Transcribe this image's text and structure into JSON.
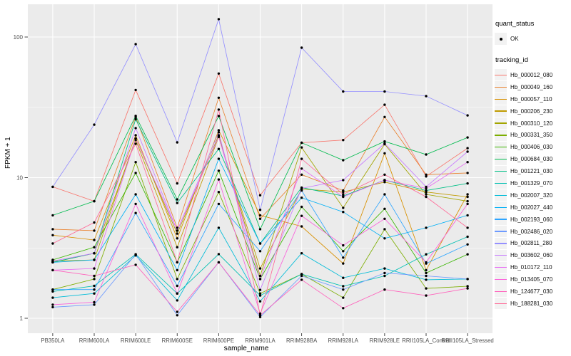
{
  "chart_data": {
    "type": "line",
    "title": "",
    "xlabel": "sample_name",
    "ylabel": "FPKM + 1",
    "yscale": "log10",
    "ylim": [
      1,
      140
    ],
    "y_ticks": [
      1,
      10,
      100
    ],
    "y_tick_labels": [
      "1",
      "10",
      "100"
    ],
    "y_minor_ticks": [
      3.1623,
      31.623
    ],
    "grid": "major-and-minor",
    "legend_position": "right",
    "categories": [
      "PB350LA",
      "RRIM600LA",
      "RRIM600LE",
      "RRIM600SE",
      "RRIM600PE",
      "RRIM901LA",
      "RRIM928BA",
      "RRIM928LA",
      "RRIM928LE",
      "RRII105LA_Control",
      "RRII105LA_Stressed"
    ],
    "series": [
      {
        "name": "Hb_000012_080",
        "color": "#F8766D",
        "values": [
          8.6,
          6.8,
          42,
          9.1,
          55,
          7.5,
          17.7,
          18.5,
          33,
          10.2,
          16.2
        ]
      },
      {
        "name": "Hb_000049_160",
        "color": "#EA8331",
        "values": [
          4.3,
          4.2,
          27,
          4.4,
          37,
          5.1,
          10.5,
          8.1,
          27,
          10.5,
          10.8
        ]
      },
      {
        "name": "Hb_000057_110",
        "color": "#D89000",
        "values": [
          3.9,
          3.6,
          20,
          3.7,
          21.7,
          5.4,
          4.5,
          2.45,
          14.9,
          2.2,
          7.6
        ]
      },
      {
        "name": "Hb_000206_230",
        "color": "#C09B00",
        "values": [
          2.5,
          2.9,
          18.5,
          3.2,
          19.5,
          2.26,
          8.3,
          7.9,
          9.3,
          7.9,
          7.3
        ]
      },
      {
        "name": "Hb_000310_120",
        "color": "#A3A500",
        "values": [
          2.55,
          2.6,
          19,
          4.0,
          20,
          2.0,
          16.4,
          6.1,
          17.3,
          7.6,
          6.8
        ]
      },
      {
        "name": "Hb_000331_350",
        "color": "#7CAE00",
        "values": [
          1.6,
          1.9,
          12.9,
          1.9,
          7.9,
          1.5,
          2.06,
          1.4,
          4.3,
          1.63,
          1.69
        ]
      },
      {
        "name": "Hb_000406_030",
        "color": "#39B600",
        "values": [
          2.6,
          3.2,
          10.8,
          2.5,
          11.2,
          1.9,
          6.2,
          3.0,
          6.0,
          2.1,
          2.85
        ]
      },
      {
        "name": "Hb_000684_030",
        "color": "#00BB4E",
        "values": [
          5.4,
          6.8,
          27.5,
          7.0,
          27.4,
          4.3,
          17.7,
          13.3,
          18.1,
          14.6,
          19.3
        ]
      },
      {
        "name": "Hb_001221_030",
        "color": "#00C087",
        "values": [
          2.5,
          2.9,
          26,
          6.6,
          16,
          3.4,
          8.5,
          7.4,
          9.6,
          8.1,
          9.1
        ]
      },
      {
        "name": "Hb_001329_070",
        "color": "#00C0B2",
        "values": [
          1.55,
          1.7,
          2.85,
          1.5,
          2.86,
          1.45,
          2.06,
          1.69,
          2.0,
          2.85,
          3.8
        ]
      },
      {
        "name": "Hb_002007_320",
        "color": "#00BCD8",
        "values": [
          1.4,
          1.5,
          2.8,
          1.34,
          4.4,
          1.32,
          2.9,
          1.94,
          2.26,
          1.88,
          1.9
        ]
      },
      {
        "name": "Hb_002027_440",
        "color": "#00B0F6",
        "values": [
          2.5,
          2.6,
          7.6,
          2.2,
          13.6,
          3.4,
          7.2,
          5.7,
          3.7,
          4.4,
          5.4
        ]
      },
      {
        "name": "Hb_002193_060",
        "color": "#2FA5FF",
        "values": [
          1.6,
          1.6,
          5.6,
          1.7,
          6.5,
          3.0,
          8.1,
          2.7,
          7.6,
          2.45,
          3.35
        ]
      },
      {
        "name": "Hb_002486_020",
        "color": "#6E9BFF",
        "values": [
          1.2,
          1.25,
          2.85,
          1.05,
          2.5,
          1.02,
          2.0,
          1.6,
          2.1,
          2.0,
          1.9
        ]
      },
      {
        "name": "Hb_002811_280",
        "color": "#9590FF",
        "values": [
          8.6,
          23.8,
          89,
          17.8,
          134,
          5.9,
          84,
          41,
          41,
          38,
          27.7
        ]
      },
      {
        "name": "Hb_003602_060",
        "color": "#C77CFF",
        "values": [
          2.55,
          2.9,
          22.5,
          4.2,
          21,
          1.59,
          8.4,
          9.6,
          17.5,
          8.6,
          15.3
        ]
      },
      {
        "name": "Hb_010172_110",
        "color": "#E76BF3",
        "values": [
          2.2,
          2.26,
          19,
          4.2,
          19.5,
          1.9,
          11.6,
          7.3,
          9.6,
          8.4,
          12.9
        ]
      },
      {
        "name": "Hb_013405_070",
        "color": "#FA62DB",
        "values": [
          1.25,
          1.3,
          6.5,
          1.5,
          9.7,
          1.08,
          5.35,
          3.3,
          5.1,
          2.5,
          6.5
        ]
      },
      {
        "name": "Hb_124677_030",
        "color": "#FF62BC",
        "values": [
          2.2,
          2.0,
          2.4,
          1.11,
          2.5,
          1.05,
          1.88,
          1.18,
          1.6,
          1.45,
          1.63
        ]
      },
      {
        "name": "Hb_188281_030",
        "color": "#FF6A98",
        "values": [
          3.4,
          4.8,
          17.4,
          2.5,
          30.5,
          1.05,
          13.6,
          7.6,
          10.5,
          7.3,
          4.4
        ]
      }
    ]
  },
  "legend": {
    "quant_status": {
      "title": "quant_status",
      "items": [
        {
          "label": "OK",
          "symbol": "point"
        }
      ]
    },
    "tracking_id": {
      "title": "tracking_id"
    }
  },
  "theme": {
    "panel_bg": "#EBEBEB",
    "grid_color": "#FFFFFF",
    "key_bg": "#F2F2F2",
    "tick_color": "#333333",
    "tick_label_color": "#4D4D4D",
    "axis_title_color": "#000000",
    "point_color": "#000000"
  }
}
